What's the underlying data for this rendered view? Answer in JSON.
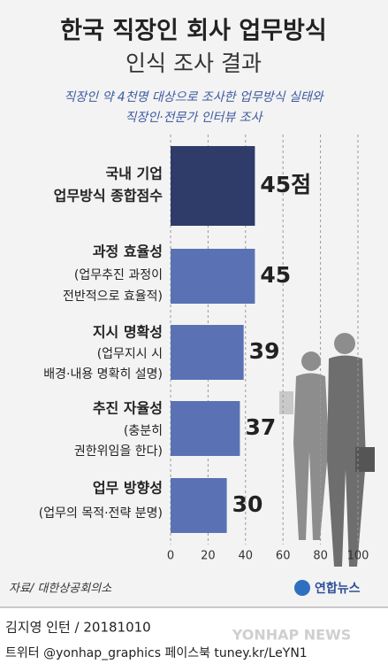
{
  "header": {
    "title": "한국 직장인 회사 업무방식",
    "subtitle": "인식 조사 결과",
    "description": [
      "직장인 약 4천명 대상으로 조사한 업무방식 실태와",
      "직장인·전문가 인터뷰 조사"
    ]
  },
  "chart_data": {
    "type": "bar",
    "orientation": "horizontal",
    "categories": [
      [
        "국내 기업",
        "업무방식 종합점수"
      ],
      [
        "과정 효율성",
        "(업무추진 과정이",
        "전반적으로 효율적)"
      ],
      [
        "지시 명확성",
        "(업무지시 시",
        "배경·내용 명확히 설명)"
      ],
      [
        "추진 자율성",
        "(충분히",
        "권한위임을 한다)"
      ],
      [
        "업무 방향성",
        "(업무의 목적·전략 분명)"
      ]
    ],
    "values": [
      45,
      45,
      39,
      37,
      30
    ],
    "value_labels": [
      "45점",
      "45",
      "39",
      "37",
      "30"
    ],
    "colors": [
      "#2f3b68",
      "#5a72b4",
      "#5a72b4",
      "#5a72b4",
      "#5a72b4"
    ],
    "xlim": [
      0,
      100
    ],
    "xticks": [
      0,
      20,
      40,
      60,
      80,
      100
    ],
    "grid": true
  },
  "footer": {
    "source": "자료/ 대한상공회의소",
    "logo": "연합뉴스",
    "credit": "김지영 인턴 / 20181010",
    "sns": "트위터 @yonhap_graphics  페이스북 tuney.kr/LeYN1",
    "watermark": "YONHAP NEWS"
  }
}
